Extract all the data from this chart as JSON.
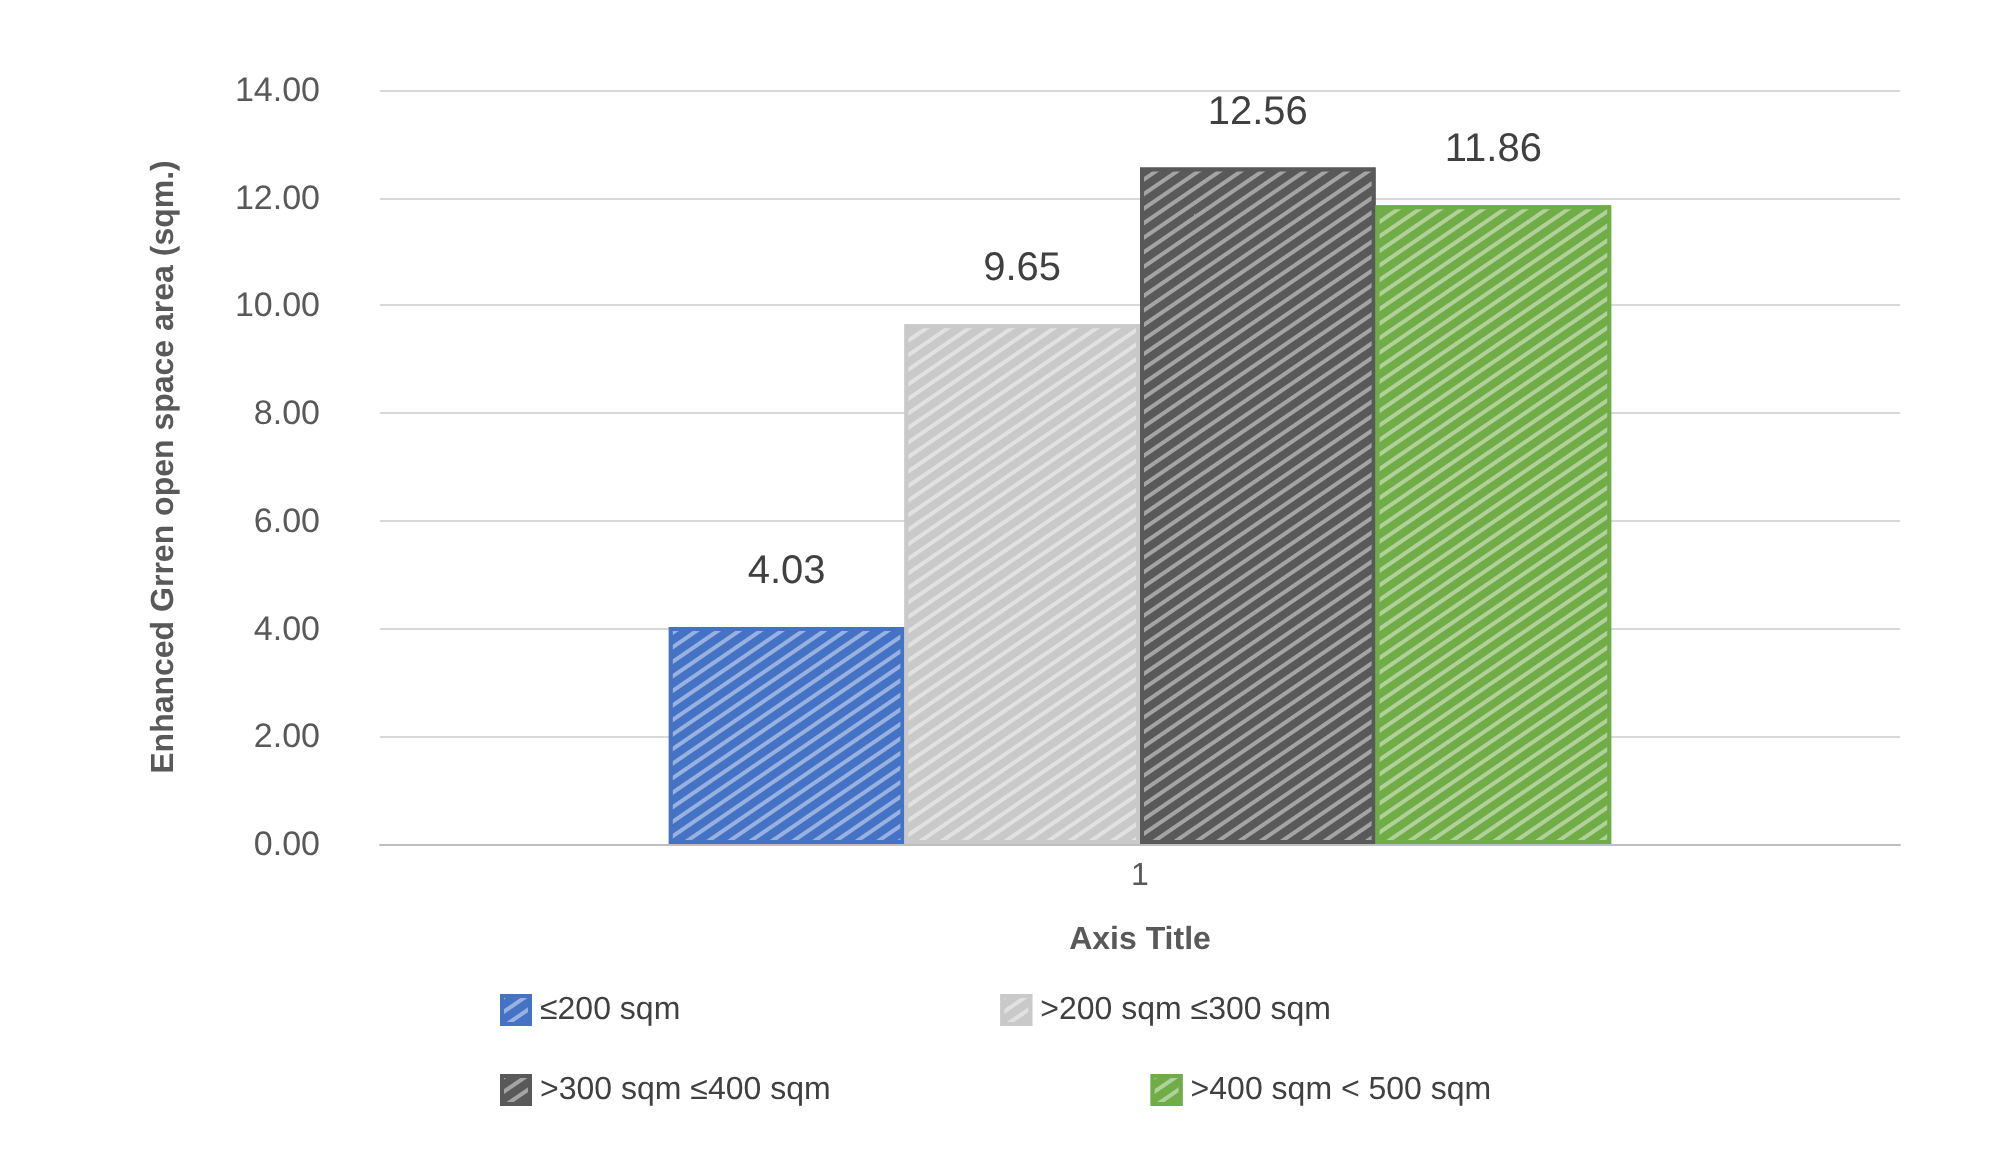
{
  "chart_data": {
    "type": "bar",
    "xlabel": "Axis Title",
    "ylabel": "Enhanced Grren open space area (sqm.)",
    "categories": [
      "1"
    ],
    "series": [
      {
        "name": "≤200 sqm",
        "color": "#4472c4",
        "values": [
          4.03
        ]
      },
      {
        "name": ">200 sqm ≤300 sqm",
        "color": "#c9c9c9",
        "values": [
          9.65
        ]
      },
      {
        "name": ">300 sqm ≤400 sqm",
        "color": "#595959",
        "values": [
          12.56
        ]
      },
      {
        "name": ">400 sqm < 500 sqm",
        "color": "#70ad47",
        "values": [
          11.86
        ]
      }
    ],
    "ylim": [
      0,
      14
    ],
    "yticks": [
      {
        "value": 0,
        "label": "0.00"
      },
      {
        "value": 2,
        "label": "2.00"
      },
      {
        "value": 4,
        "label": "4.00"
      },
      {
        "value": 6,
        "label": "6.00"
      },
      {
        "value": 8,
        "label": "8.00"
      },
      {
        "value": 10,
        "label": "10.00"
      },
      {
        "value": 12,
        "label": "12.00"
      },
      {
        "value": 14,
        "label": "14.00"
      }
    ],
    "grid": "y",
    "legend": "bottom",
    "data_labels": true
  }
}
